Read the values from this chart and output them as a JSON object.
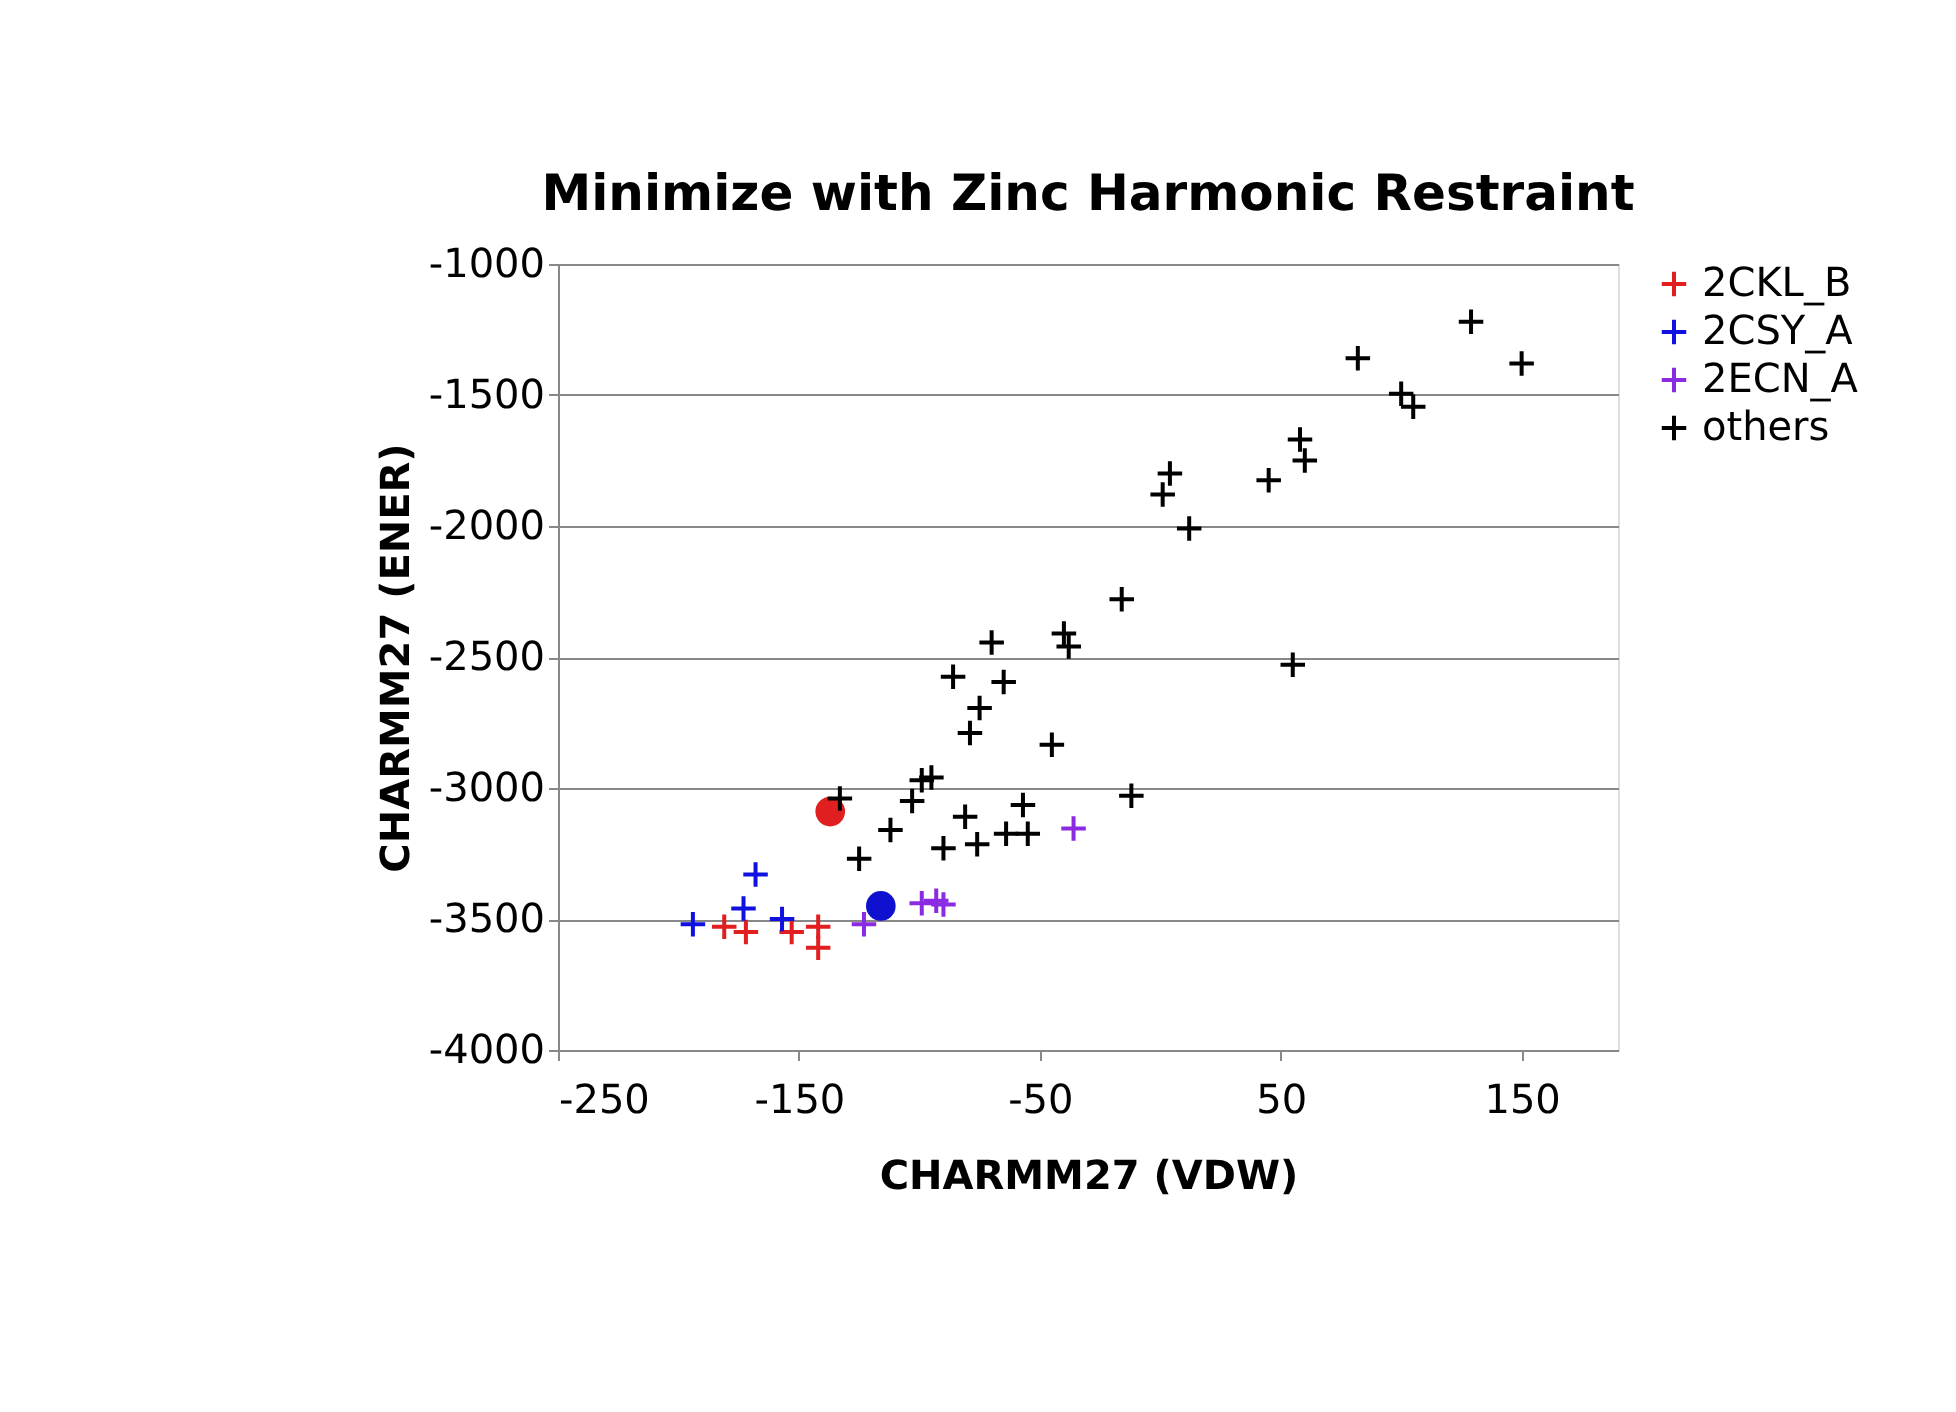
{
  "chart_data": {
    "type": "scatter",
    "title": "Minimize with Zinc Harmonic Restraint",
    "xlabel": "CHARMM27 (VDW)",
    "ylabel": "CHARMM27 (ENER)",
    "xlim": [
      -250,
      190
    ],
    "xticks": [
      -250,
      -150,
      -50,
      50,
      150
    ],
    "ylim": [
      -4000,
      -1000
    ],
    "yticks": [
      -4000,
      -3500,
      -3000,
      -2500,
      -2000,
      -1500,
      -1000
    ],
    "grid": "y",
    "legend": "right",
    "series": [
      {
        "color": "#1010d0",
        "marker": "circle",
        "x": [
          -116
        ],
        "values": [
          -3450
        ]
      },
      {
        "color": "#e02020",
        "marker": "circle",
        "x": [
          -137
        ],
        "values": [
          -3090
        ]
      },
      {
        "name": "2CKL_B",
        "color": "#e02020",
        "marker": "cross",
        "x": [
          -181,
          -172,
          -153,
          -142,
          -142
        ],
        "values": [
          -3530,
          -3550,
          -3550,
          -3530,
          -3610
        ]
      },
      {
        "name": "2CSY_A",
        "color": "#1010e0",
        "marker": "cross",
        "x": [
          -194,
          -173,
          -168,
          -157
        ],
        "values": [
          -3520,
          -3460,
          -3330,
          -3500
        ]
      },
      {
        "name": "2ECN_A",
        "color": "#8a2be2",
        "marker": "cross",
        "x": [
          -123,
          -99,
          -93,
          -90,
          -36
        ],
        "values": [
          -3520,
          -3440,
          -3430,
          -3445,
          -3155
        ]
      },
      {
        "name": "others",
        "color": "#000000",
        "marker": "cross",
        "x": [
          -133,
          -125,
          -112,
          -103,
          -99,
          -95,
          -90,
          -86,
          -81,
          -79,
          -76,
          -75,
          -70,
          -65,
          -64,
          -57,
          -55,
          -45,
          -40,
          -38,
          -12,
          -16,
          1,
          4,
          12,
          45,
          55,
          58,
          60,
          82,
          100,
          105,
          129,
          150
        ],
        "values": [
          -3040,
          -3270,
          -3160,
          -3050,
          -2970,
          -2960,
          -3230,
          -2575,
          -3110,
          -2790,
          -3215,
          -2695,
          -2445,
          -2595,
          -3175,
          -3065,
          -3175,
          -2835,
          -2410,
          -2460,
          -3030,
          -2280,
          -1880,
          -1800,
          -2010,
          -1825,
          -2530,
          -1670,
          -1750,
          -1360,
          -1495,
          -1545,
          -1220,
          -1380
        ]
      }
    ]
  }
}
